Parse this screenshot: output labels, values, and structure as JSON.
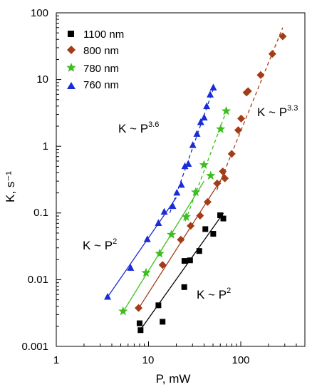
{
  "chart_data": {
    "type": "scatter",
    "xscale": "log",
    "yscale": "log",
    "xlim": [
      1,
      450
    ],
    "ylim": [
      0.001,
      100
    ],
    "xlabel": "P, mW",
    "ylabel": "K, s⁻¹",
    "xticks": [
      1,
      10,
      100
    ],
    "xtick_labels": [
      "1",
      "10",
      "100"
    ],
    "yticks": [
      0.001,
      0.01,
      0.1,
      1,
      10,
      100
    ],
    "ytick_labels": [
      "0.001",
      "0.01",
      "0.1",
      "1",
      "10",
      "100"
    ],
    "grid": false,
    "legend_position": "top-left",
    "series": [
      {
        "name": "1100 nm",
        "color": "#000000",
        "marker": "square",
        "x": [
          8,
          8.2,
          12.8,
          14.2,
          24.4,
          24.5,
          28.2,
          35.5,
          41.3,
          50.3,
          59.8,
          64.7
        ],
        "y": [
          0.00222,
          0.00175,
          0.00413,
          0.00234,
          0.00774,
          0.0191,
          0.0195,
          0.0269,
          0.0573,
          0.0487,
          0.0923,
          0.0826
        ],
        "fit": {
          "x": [
            8,
            65
          ],
          "y": [
            0.0017,
            0.1
          ],
          "style": "solid"
        }
      },
      {
        "name": "800 nm",
        "color": "#A33C17",
        "marker": "diamond",
        "x": [
          7.8,
          14.2,
          22.4,
          28.6,
          36.2,
          43.7,
          55.5,
          63.8,
          67.2,
          79.7,
          93.9,
          101,
          115.5,
          120,
          164.2,
          220,
          285
        ],
        "y": [
          0.00376,
          0.0166,
          0.0398,
          0.0641,
          0.091,
          0.146,
          0.277,
          0.42,
          0.33,
          0.768,
          1.74,
          2.6,
          6.38,
          6.7,
          11.7,
          24.2,
          44.4
        ],
        "fit_low": {
          "x": [
            7.8,
            68
          ],
          "y": [
            0.0037,
            0.4
          ],
          "style": "solid"
        },
        "fit_high": {
          "x": [
            55,
            285
          ],
          "y": [
            0.22,
            60
          ],
          "style": "dashed"
        }
      },
      {
        "name": "780 nm",
        "color": "#3DBE1E",
        "marker": "star",
        "x": [
          5.3,
          9.4,
          13.2,
          17.7,
          25.6,
          32.5,
          39.9,
          47.2,
          60.5,
          69.5
        ],
        "y": [
          0.00336,
          0.0127,
          0.0246,
          0.0474,
          0.0872,
          0.205,
          0.526,
          0.362,
          1.81,
          3.37
        ],
        "fit_low": {
          "x": [
            5.3,
            40
          ],
          "y": [
            0.0033,
            0.3
          ],
          "style": "solid"
        },
        "fit_high": {
          "x": [
            25,
            70
          ],
          "y": [
            0.075,
            3.4
          ],
          "style": "dashed"
        }
      },
      {
        "name": "760 nm",
        "color": "#1A2BD8",
        "marker": "triangle",
        "x": [
          3.6,
          6.4,
          9.7,
          12.8,
          14.8,
          18.3,
          20.3,
          22.7,
          24.8,
          27,
          30.2,
          33.5,
          36.8,
          40.1,
          42.7,
          46.6,
          50.4
        ],
        "y": [
          0.00553,
          0.015,
          0.0403,
          0.0705,
          0.104,
          0.127,
          0.201,
          0.264,
          0.501,
          0.544,
          1.04,
          1.53,
          2.29,
          2.69,
          3.97,
          5.94,
          7.58
        ],
        "fit_low": {
          "x": [
            3.6,
            20
          ],
          "y": [
            0.0055,
            0.17
          ],
          "style": "solid"
        },
        "fit_high": {
          "x": [
            17,
            50
          ],
          "y": [
            0.1,
            7.0
          ],
          "style": "dashed"
        }
      }
    ],
    "annotations": [
      {
        "base": "K ~ P",
        "exp": "3.6"
      },
      {
        "base": "K ~ P",
        "exp": "3.3"
      },
      {
        "base": "K ~ P",
        "exp": "2"
      },
      {
        "base": "K ~ P",
        "exp": "2"
      }
    ]
  }
}
